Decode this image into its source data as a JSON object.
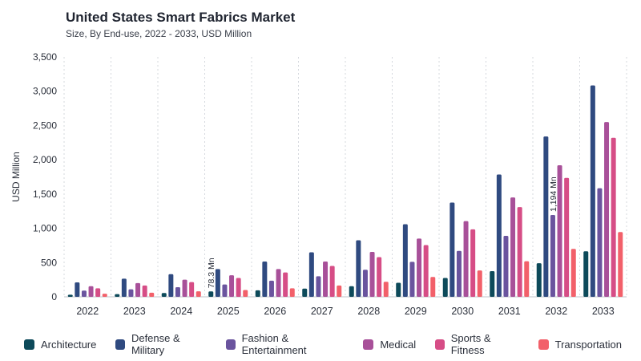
{
  "header": {
    "title": "United States Smart Fabrics Market",
    "subtitle": "Size, By End-use, 2022 - 2033, USD Million"
  },
  "colors": {
    "Architecture": "#0d4a5a",
    "Defense & Military": "#2f4a80",
    "Fashion & Entertainment": "#6a549e",
    "Medical": "#a85099",
    "Sports & Fitness": "#d64d86",
    "Transportation": "#f2606a"
  },
  "chart_data": {
    "type": "bar",
    "title": "United States Smart Fabrics Market",
    "subtitle": "Size, By End-use, 2022 - 2033, USD Million",
    "xlabel": "",
    "ylabel": "USD Million",
    "ylim": [
      0,
      3500
    ],
    "yticks": [
      "0",
      "500",
      "1,000",
      "1,500",
      "2,000",
      "2,500",
      "3,000",
      "3,500"
    ],
    "ytick_values": [
      0,
      500,
      1000,
      1500,
      2000,
      2500,
      3000,
      3500
    ],
    "categories": [
      "2022",
      "2023",
      "2024",
      "2025",
      "2026",
      "2027",
      "2028",
      "2029",
      "2030",
      "2031",
      "2032",
      "2033"
    ],
    "grid": "vertical dashed lines between year groups",
    "legend_position": "bottom",
    "series": [
      {
        "name": "Architecture",
        "values": [
          30,
          40,
          55,
          78.3,
          95,
          120,
          155,
          205,
          275,
          375,
          490,
          665
        ]
      },
      {
        "name": "Defense & Military",
        "values": [
          210,
          265,
          330,
          405,
          515,
          650,
          825,
          1060,
          1375,
          1785,
          2340,
          3085
        ]
      },
      {
        "name": "Fashion & Entertainment",
        "values": [
          90,
          110,
          140,
          180,
          235,
          300,
          395,
          510,
          670,
          890,
          1194,
          1585
        ]
      },
      {
        "name": "Medical",
        "values": [
          155,
          200,
          250,
          315,
          405,
          515,
          655,
          850,
          1105,
          1450,
          1920,
          2550
        ]
      },
      {
        "name": "Sports & Fitness",
        "values": [
          125,
          165,
          215,
          275,
          355,
          450,
          580,
          755,
          985,
          1310,
          1735,
          2320
        ]
      },
      {
        "name": "Transportation",
        "values": [
          45,
          60,
          80,
          100,
          125,
          165,
          220,
          290,
          385,
          520,
          700,
          945
        ]
      }
    ],
    "annotations": [
      {
        "category": "2025",
        "series": "Architecture",
        "text": "78.3 Mn"
      },
      {
        "category": "2032",
        "series": "Fashion & Entertainment",
        "text": "1,194 Mn"
      }
    ]
  }
}
